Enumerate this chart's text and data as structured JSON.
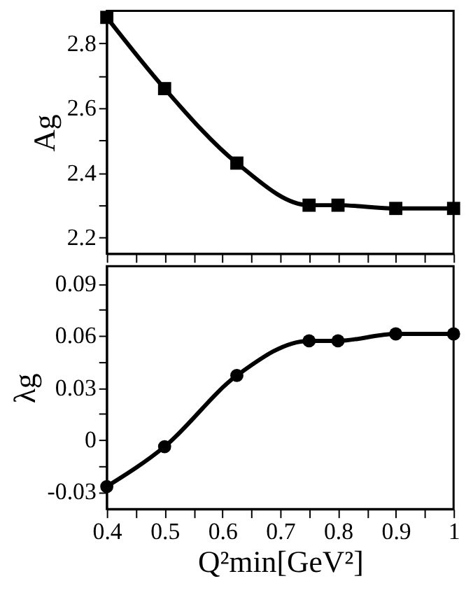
{
  "chart_data": [
    {
      "type": "line",
      "ylabel": "Ag",
      "x": [
        0.4,
        0.5,
        0.625,
        0.75,
        0.8,
        0.9,
        1.0
      ],
      "series": [
        {
          "color": "#000000",
          "values": [
            2.88,
            2.66,
            2.43,
            2.3,
            2.3,
            2.29,
            2.29
          ]
        }
      ],
      "marker": "square",
      "grid": false,
      "tick_labels": "y",
      "xlim": [
        0.4,
        1.0
      ],
      "xticks": [
        {
          "value": 0.4,
          "label": null
        },
        {
          "value": 0.45,
          "label": null
        },
        {
          "value": 0.5,
          "label": null
        },
        {
          "value": 0.55,
          "label": null
        },
        {
          "value": 0.6,
          "label": null
        },
        {
          "value": 0.65,
          "label": null
        },
        {
          "value": 0.7,
          "label": null
        },
        {
          "value": 0.75,
          "label": null
        },
        {
          "value": 0.8,
          "label": null
        },
        {
          "value": 0.85,
          "label": null
        },
        {
          "value": 0.9,
          "label": null
        },
        {
          "value": 0.95,
          "label": null
        },
        {
          "value": 1.0,
          "label": null
        }
      ],
      "ylim": [
        2.15,
        2.9
      ],
      "yticks": [
        2.2,
        {
          "value": 2.3,
          "label": null
        },
        2.4,
        {
          "value": 2.5,
          "label": null
        },
        2.6,
        {
          "value": 2.7,
          "label": null
        },
        2.8
      ]
    },
    {
      "type": "line",
      "ylabel": "λg",
      "xlabel": "Q²min[GeV²]",
      "x": [
        0.4,
        0.5,
        0.625,
        0.75,
        0.8,
        0.9,
        1.0
      ],
      "series": [
        {
          "color": "#000000",
          "values": [
            -0.027,
            -0.004,
            0.037,
            0.057,
            0.057,
            0.061,
            0.061
          ]
        }
      ],
      "marker": "circle",
      "grid": false,
      "xlim": [
        0.4,
        1.0
      ],
      "xticks": [
        0.4,
        {
          "value": 0.45,
          "label": null
        },
        0.5,
        {
          "value": 0.55,
          "label": null
        },
        0.6,
        {
          "value": 0.65,
          "label": null
        },
        0.7,
        {
          "value": 0.75,
          "label": null
        },
        0.8,
        {
          "value": 0.85,
          "label": null
        },
        0.9,
        {
          "value": 0.95,
          "label": null
        },
        {
          "value": 1.0,
          "label": "1"
        }
      ],
      "ylim": [
        -0.04,
        0.1
      ],
      "yticks": [
        {
          "value": -0.03,
          "label": "-0.03"
        },
        {
          "value": -0.015,
          "label": null
        },
        0,
        {
          "value": 0.015,
          "label": null
        },
        0.03,
        {
          "value": 0.045,
          "label": null
        },
        0.06,
        {
          "value": 0.075,
          "label": null
        },
        0.09
      ]
    }
  ]
}
